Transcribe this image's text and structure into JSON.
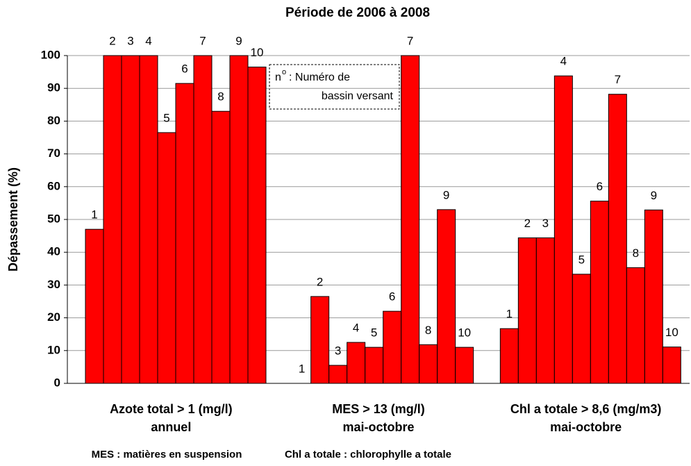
{
  "chart_data": {
    "type": "bar",
    "title": "Période de 2006 à 2008",
    "y_label": "Dépassement (%)",
    "categories": [
      [
        "Azote total > 1 (mg/l)",
        "annuel"
      ],
      [
        "MES > 13 (mg/l)",
        "mai-octobre"
      ],
      [
        "Chl a totale > 8,6 (mg/m3)",
        "mai-octobre"
      ]
    ],
    "series": [
      {
        "name": "1",
        "color": "#ff0000",
        "values": [
          47,
          0,
          16.7
        ]
      },
      {
        "name": "2",
        "color": "#ff0000",
        "values": [
          100,
          26.5,
          44.4
        ]
      },
      {
        "name": "3",
        "color": "#ff0000",
        "values": [
          100,
          5.5,
          44.4
        ]
      },
      {
        "name": "4",
        "color": "#ff0000",
        "values": [
          100,
          12.5,
          93.8
        ]
      },
      {
        "name": "5",
        "color": "#ff0000",
        "values": [
          76.5,
          11,
          33.3
        ]
      },
      {
        "name": "6",
        "color": "#ff0000",
        "values": [
          91.5,
          22,
          55.6
        ]
      },
      {
        "name": "7",
        "color": "#ff0000",
        "values": [
          100,
          100,
          88.2
        ]
      },
      {
        "name": "8",
        "color": "#ff0000",
        "values": [
          83,
          11.8,
          35.3
        ]
      },
      {
        "name": "9",
        "color": "#ff0000",
        "values": [
          100,
          53,
          52.9
        ]
      },
      {
        "name": "10",
        "color": "#ff0000",
        "values": [
          96.5,
          11,
          11.1
        ]
      }
    ],
    "ylim": [
      0,
      100
    ],
    "yticks": [
      0,
      10,
      20,
      30,
      40,
      50,
      60,
      70,
      80,
      90,
      100
    ],
    "grid": true,
    "annotation": {
      "symbol": "n",
      "superscript": "o",
      "lines": [
        ": Numéro de",
        "bassin versant"
      ]
    },
    "footnotes": [
      "MES : matières en suspension",
      "Chl a totale : chlorophylle a totale"
    ]
  }
}
